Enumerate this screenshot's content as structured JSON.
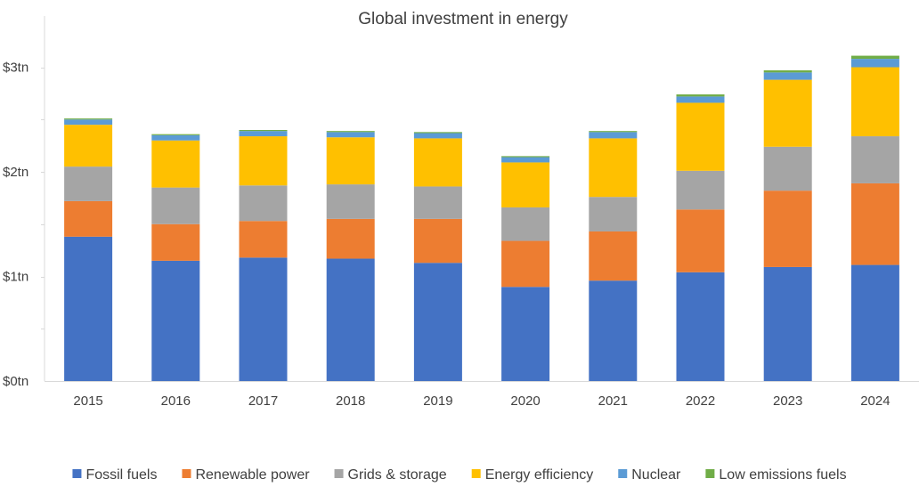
{
  "chart_data": {
    "type": "bar",
    "stacked": true,
    "title": "Global investment in energy",
    "xlabel": "",
    "ylabel": "",
    "ylim": [
      0,
      3.3
    ],
    "y_ticks": [
      {
        "value": 0,
        "label": "$0tn"
      },
      {
        "value": 1,
        "label": "$1tn"
      },
      {
        "value": 2,
        "label": "$2tn"
      },
      {
        "value": 3,
        "label": "$3tn"
      }
    ],
    "grid": false,
    "legend_position": "bottom",
    "categories": [
      "2015",
      "2016",
      "2017",
      "2018",
      "2019",
      "2020",
      "2021",
      "2022",
      "2023",
      "2024"
    ],
    "series": [
      {
        "name": "Fossil fuels",
        "color": "#4472C4",
        "values": [
          1.38,
          1.15,
          1.18,
          1.17,
          1.13,
          0.9,
          0.96,
          1.04,
          1.09,
          1.11
        ]
      },
      {
        "name": "Renewable power",
        "color": "#ED7D31",
        "values": [
          0.34,
          0.35,
          0.35,
          0.38,
          0.42,
          0.44,
          0.47,
          0.6,
          0.73,
          0.78
        ]
      },
      {
        "name": "Grids & storage",
        "color": "#A5A5A5",
        "values": [
          0.33,
          0.35,
          0.34,
          0.33,
          0.31,
          0.32,
          0.33,
          0.37,
          0.42,
          0.45
        ]
      },
      {
        "name": "Energy efficiency",
        "color": "#FFC000",
        "values": [
          0.4,
          0.45,
          0.47,
          0.45,
          0.46,
          0.43,
          0.56,
          0.65,
          0.64,
          0.66
        ]
      },
      {
        "name": "Nuclear",
        "color": "#5B9BD5",
        "values": [
          0.05,
          0.05,
          0.05,
          0.05,
          0.05,
          0.05,
          0.06,
          0.06,
          0.07,
          0.08
        ]
      },
      {
        "name": "Low emissions fuels",
        "color": "#70AD47",
        "values": [
          0.01,
          0.01,
          0.01,
          0.01,
          0.01,
          0.01,
          0.01,
          0.02,
          0.02,
          0.03
        ]
      }
    ]
  }
}
